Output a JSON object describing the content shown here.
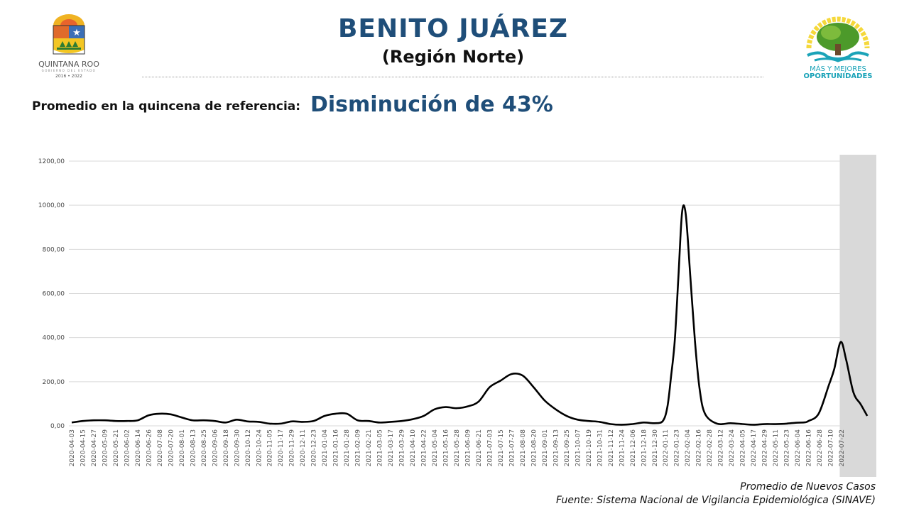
{
  "header": {
    "title": "BENITO JUÁREZ",
    "subtitle": "(Región Norte)",
    "reference_label": "Promedio en la quincena de referencia:",
    "reference_value": "Disminución de 43%"
  },
  "logos": {
    "left": {
      "name": "QUINTANA ROO",
      "line2": "GOBIERNO DEL ESTADO",
      "years": "2016 • 2022"
    },
    "right": {
      "line1": "MÁS Y MEJORES",
      "line2": "OPORTUNIDADES"
    }
  },
  "footer": {
    "series_name": "Promedio de Nuevos Casos",
    "source": "Fuente: Sistema Nacional de Vigilancia Epidemiológica (SINAVE)"
  },
  "colors": {
    "title": "#1f4e79",
    "line": "#000000",
    "shade": "#d9d9d9",
    "grid": "#d9d9d9",
    "logo_teal": "#1aa3b8"
  },
  "chart_data": {
    "type": "line",
    "title": "",
    "xlabel": "",
    "ylabel": "",
    "ylim": [
      0,
      1200
    ],
    "y_ticks": [
      "0,00",
      "200,00",
      "400,00",
      "600,00",
      "800,00",
      "1000,00",
      "1200,00"
    ],
    "y_tick_values": [
      0,
      200,
      400,
      600,
      800,
      1000,
      1200
    ],
    "grid": true,
    "x_start_date": "2020-04-03",
    "x_units": "days since 2020-04-03",
    "x_tick_step_days": 12,
    "x_ticks": [
      "2020-04-03",
      "2020-04-15",
      "2020-04-27",
      "2020-05-09",
      "2020-05-21",
      "2020-06-02",
      "2020-06-14",
      "2020-06-26",
      "2020-07-08",
      "2020-07-20",
      "2020-08-01",
      "2020-08-13",
      "2020-08-25",
      "2020-09-06",
      "2020-09-18",
      "2020-09-30",
      "2020-10-12",
      "2020-10-24",
      "2020-11-05",
      "2020-11-17",
      "2020-11-29",
      "2020-12-11",
      "2020-12-23",
      "2021-01-04",
      "2021-01-16",
      "2021-01-28",
      "2021-02-09",
      "2021-02-21",
      "2021-03-05",
      "2021-03-17",
      "2021-03-29",
      "2021-04-10",
      "2021-04-22",
      "2021-05-04",
      "2021-05-16",
      "2021-05-28",
      "2021-06-09",
      "2021-06-21",
      "2021-07-03",
      "2021-07-15",
      "2021-07-27",
      "2021-08-08",
      "2021-08-20",
      "2021-09-01",
      "2021-09-13",
      "2021-09-25",
      "2021-10-07",
      "2021-10-19",
      "2021-10-31",
      "2021-11-12",
      "2021-11-24",
      "2021-12-06",
      "2021-12-18",
      "2021-12-30",
      "2022-01-11",
      "2022-01-23",
      "2022-02-04",
      "2022-02-16",
      "2022-02-28",
      "2022-03-12",
      "2022-03-24",
      "2022-04-05",
      "2022-04-17",
      "2022-04-29",
      "2022-05-11",
      "2022-05-23",
      "2022-06-04",
      "2022-06-16",
      "2022-06-28",
      "2022-07-10",
      "2022-07-22"
    ],
    "shaded_from_day": 838,
    "series": [
      {
        "name": "Promedio de Nuevos Casos",
        "points": [
          [
            0,
            15
          ],
          [
            12,
            22
          ],
          [
            24,
            25
          ],
          [
            36,
            25
          ],
          [
            48,
            22
          ],
          [
            60,
            22
          ],
          [
            72,
            25
          ],
          [
            84,
            48
          ],
          [
            96,
            55
          ],
          [
            108,
            52
          ],
          [
            120,
            38
          ],
          [
            132,
            25
          ],
          [
            144,
            25
          ],
          [
            156,
            22
          ],
          [
            168,
            15
          ],
          [
            180,
            28
          ],
          [
            192,
            20
          ],
          [
            204,
            18
          ],
          [
            216,
            10
          ],
          [
            228,
            10
          ],
          [
            240,
            20
          ],
          [
            252,
            18
          ],
          [
            264,
            22
          ],
          [
            276,
            45
          ],
          [
            288,
            55
          ],
          [
            300,
            55
          ],
          [
            312,
            25
          ],
          [
            324,
            22
          ],
          [
            336,
            15
          ],
          [
            348,
            18
          ],
          [
            360,
            22
          ],
          [
            372,
            30
          ],
          [
            384,
            45
          ],
          [
            396,
            75
          ],
          [
            408,
            85
          ],
          [
            420,
            80
          ],
          [
            432,
            88
          ],
          [
            444,
            110
          ],
          [
            456,
            175
          ],
          [
            468,
            205
          ],
          [
            480,
            235
          ],
          [
            492,
            228
          ],
          [
            504,
            175
          ],
          [
            516,
            115
          ],
          [
            528,
            75
          ],
          [
            540,
            45
          ],
          [
            552,
            28
          ],
          [
            564,
            22
          ],
          [
            576,
            18
          ],
          [
            588,
            8
          ],
          [
            600,
            5
          ],
          [
            612,
            8
          ],
          [
            624,
            15
          ],
          [
            636,
            12
          ],
          [
            645,
            22
          ],
          [
            650,
            87
          ],
          [
            654,
            225
          ],
          [
            658,
            386
          ],
          [
            662,
            676
          ],
          [
            666,
            968
          ],
          [
            670,
            959
          ],
          [
            675,
            676
          ],
          [
            680,
            386
          ],
          [
            685,
            171
          ],
          [
            691,
            55
          ],
          [
            704,
            10
          ],
          [
            719,
            12
          ],
          [
            732,
            8
          ],
          [
            744,
            5
          ],
          [
            756,
            8
          ],
          [
            768,
            8
          ],
          [
            780,
            10
          ],
          [
            790,
            14
          ],
          [
            800,
            16
          ],
          [
            804,
            22
          ],
          [
            815,
            55
          ],
          [
            826,
            183
          ],
          [
            832,
            257
          ],
          [
            839,
            380
          ],
          [
            845,
            300
          ],
          [
            853,
            151
          ],
          [
            861,
            97
          ],
          [
            868,
            45
          ]
        ]
      }
    ]
  }
}
